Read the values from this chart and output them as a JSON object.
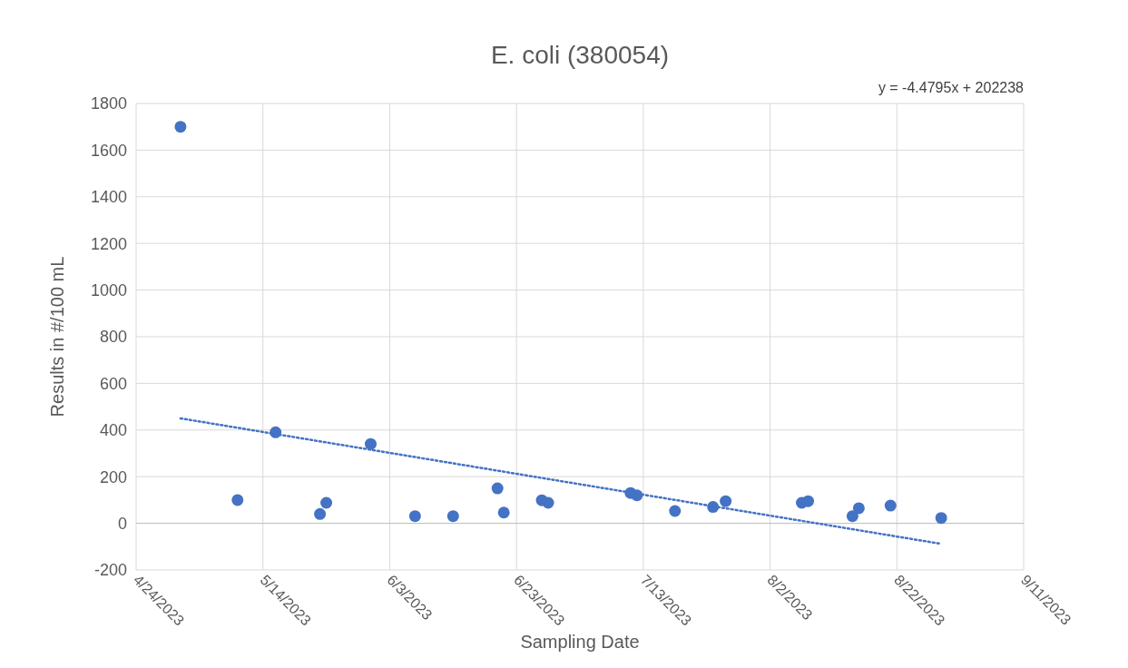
{
  "chart_data": {
    "type": "scatter",
    "title": "E. coli (380054)",
    "xlabel": "Sampling Date",
    "ylabel": "Results in #/100 mL",
    "annotations": [
      "y = -4.4795x + 202238"
    ],
    "xlim": [
      "2023-04-24",
      "2023-09-11"
    ],
    "xticks": [
      {
        "value": "2023-04-24",
        "label": "4/24/2023"
      },
      {
        "value": "2023-05-14",
        "label": "5/14/2023"
      },
      {
        "value": "2023-06-03",
        "label": "6/3/2023"
      },
      {
        "value": "2023-06-23",
        "label": "6/23/2023"
      },
      {
        "value": "2023-07-13",
        "label": "7/13/2023"
      },
      {
        "value": "2023-08-02",
        "label": "8/2/2023"
      },
      {
        "value": "2023-08-22",
        "label": "8/22/2023"
      },
      {
        "value": "2023-09-11",
        "label": "9/11/2023"
      }
    ],
    "ylim": [
      -200,
      1800
    ],
    "yticks": [
      -200,
      0,
      200,
      400,
      600,
      800,
      1000,
      1200,
      1400,
      1600,
      1800
    ],
    "grid": true,
    "series": [
      {
        "color": "#4472c4",
        "marker": "circle",
        "x": [
          "2023-05-01",
          "2023-05-10",
          "2023-05-16",
          "2023-05-23",
          "2023-05-24",
          "2023-05-31",
          "2023-06-07",
          "2023-06-13",
          "2023-06-20",
          "2023-06-21",
          "2023-06-27",
          "2023-06-28",
          "2023-07-11",
          "2023-07-12",
          "2023-07-18",
          "2023-07-24",
          "2023-07-26",
          "2023-08-07",
          "2023-08-08",
          "2023-08-15",
          "2023-08-16",
          "2023-08-21",
          "2023-08-29"
        ],
        "values": [
          1700,
          100,
          390,
          40,
          88,
          340,
          31,
          31,
          150,
          46,
          99,
          88,
          130,
          120,
          53,
          70,
          95,
          88,
          95,
          31,
          65,
          76,
          23
        ]
      },
      {
        "type": "line",
        "color": "#4472c4",
        "line_style": "dotted",
        "marker": "none",
        "x": [
          "2023-05-01",
          "2023-08-29"
        ],
        "values": [
          450,
          -88
        ]
      }
    ]
  }
}
